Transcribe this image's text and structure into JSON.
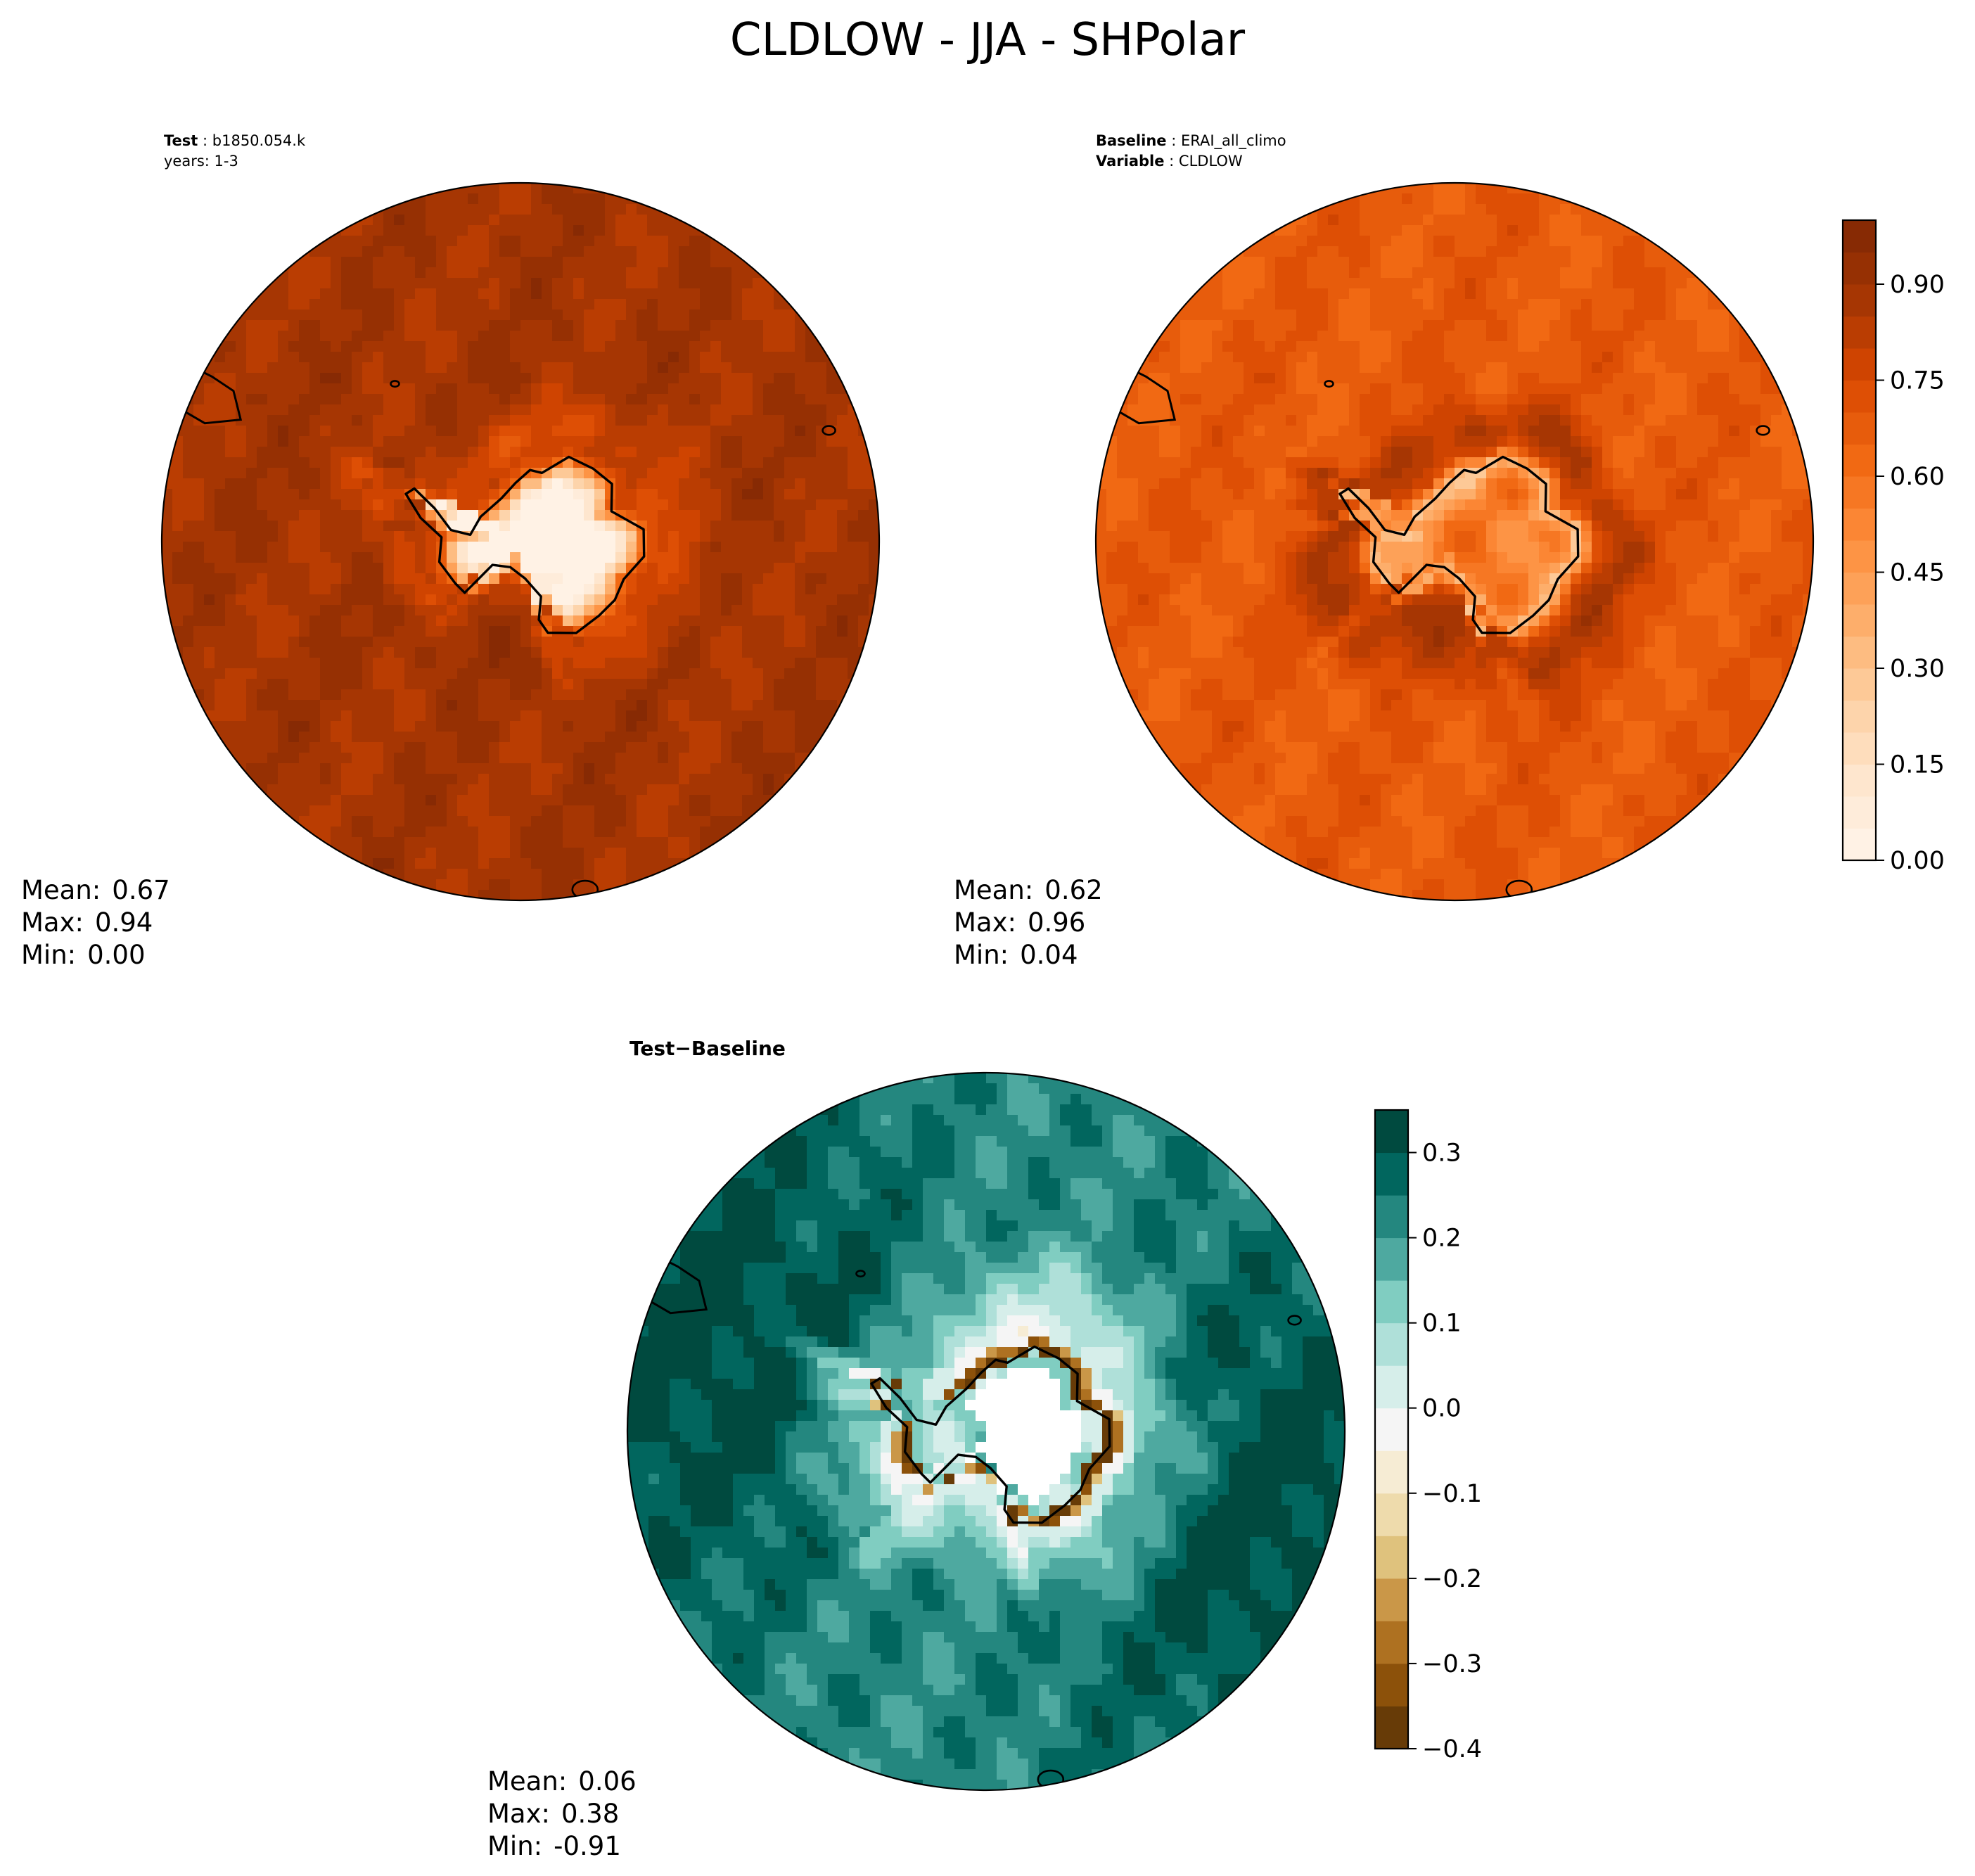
{
  "title": "CLDLOW - JJA - SHPolar",
  "colors": {
    "seq": [
      "#fff5eb",
      "#fee6ce",
      "#fdd0a2",
      "#fdae6b",
      "#fd8d3c",
      "#f16913",
      "#d94801",
      "#a63603",
      "#7f2704"
    ],
    "div": [
      "#543005",
      "#8c510a",
      "#bf812d",
      "#dfc27d",
      "#f6e8c3",
      "#f5f5f5",
      "#c7eae5",
      "#80cdc1",
      "#35978f",
      "#01665e",
      "#003c30"
    ],
    "coast": "#000000",
    "land_mask": "#ffffff"
  },
  "panels": [
    {
      "id": "test",
      "header": {
        "l1_label": "Test",
        "l1_value": "b1850.054.k",
        "l2": "years: 1-3"
      },
      "stats": {
        "mean_label": "Mean:",
        "mean": "0.67",
        "max_label": "Max:",
        "max": "0.94",
        "min_label": "Min:",
        "min": "0.00"
      },
      "field": {
        "ocean": 0.88,
        "coast": 0.62,
        "interior": 0.02,
        "ring": 0.76,
        "ring_amp": 0.06,
        "south_band": 0.93
      }
    },
    {
      "id": "baseline",
      "header": {
        "l1_label": "Baseline",
        "l1_value": "ERAI_all_climo",
        "l2_label": "Variable",
        "l2_value": "CLDLOW"
      },
      "stats": {
        "mean_label": "Mean:",
        "mean": "0.62",
        "max_label": "Max:",
        "max": "0.96",
        "min_label": "Min:",
        "min": "0.04"
      },
      "field": {
        "ocean": 0.68,
        "coast": 0.3,
        "interior": 0.55,
        "ring": 0.84,
        "ring_amp": 0.08,
        "south_band": 0.86
      }
    },
    {
      "id": "diff",
      "header": {
        "l1_label": "Test",
        "l1_op": "−",
        "l1_value": "Baseline"
      },
      "stats": {
        "mean_label": "Mean:",
        "mean": "0.06",
        "max_label": "Max:",
        "max": "0.38",
        "min_label": "Min:",
        "min": "-0.91"
      }
    }
  ],
  "chart_data": [
    {
      "type": "heatmap",
      "projection": "south-polar-stereographic",
      "title": "Test: b1850.054.k (years: 1-3)",
      "variable": "CLDLOW",
      "mean": 0.67,
      "max": 0.94,
      "min": 0.0,
      "colorbar": "shared with baseline"
    },
    {
      "type": "heatmap",
      "projection": "south-polar-stereographic",
      "title": "Baseline: ERAI_all_climo",
      "variable": "CLDLOW",
      "mean": 0.62,
      "max": 0.96,
      "min": 0.04,
      "colorbar": {
        "min": 0.0,
        "max": 1.0,
        "levels": 20,
        "ticks": [
          0.0,
          0.15,
          0.3,
          0.45,
          0.6,
          0.75,
          0.9
        ],
        "tick_labels": [
          "0.00",
          "0.15",
          "0.30",
          "0.45",
          "0.60",
          "0.75",
          "0.90"
        ]
      }
    },
    {
      "type": "heatmap",
      "projection": "south-polar-stereographic",
      "title": "Test − Baseline",
      "variable": "CLDLOW",
      "mean": 0.06,
      "max": 0.38,
      "min": -0.91,
      "colorbar": {
        "min": -0.4,
        "max": 0.35,
        "levels": 15,
        "ticks": [
          -0.4,
          -0.3,
          -0.2,
          -0.1,
          0.0,
          0.1,
          0.2,
          0.3
        ],
        "tick_labels": [
          "−0.4",
          "−0.3",
          "−0.2",
          "−0.1",
          "0.0",
          "0.1",
          "0.2",
          "0.3"
        ]
      }
    }
  ]
}
